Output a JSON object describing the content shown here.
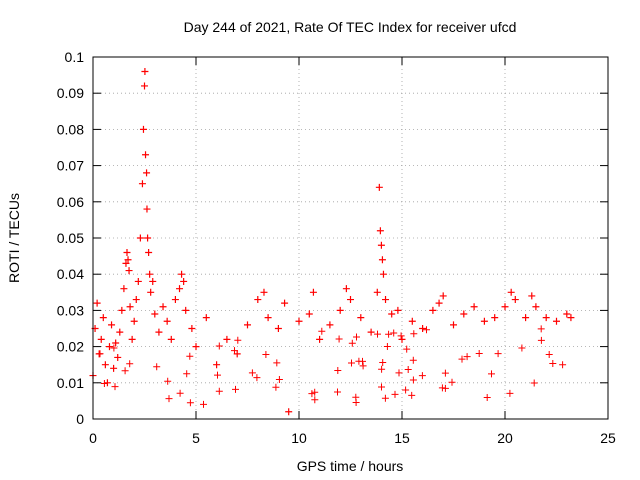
{
  "chart_data": {
    "type": "scatter",
    "title": "Day 244 of 2021, Rate Of TEC Index for receiver ufcd",
    "xlabel": "GPS time / hours",
    "ylabel": "ROTI / TECUs",
    "xlim": [
      0,
      25
    ],
    "ylim": [
      0,
      0.1
    ],
    "xticks": [
      "0",
      "5",
      "10",
      "15",
      "20",
      "25"
    ],
    "yticks": [
      "0",
      "0.01",
      "0.02",
      "0.03",
      "0.04",
      "0.05",
      "0.06",
      "0.07",
      "0.08",
      "0.09",
      "0.1"
    ],
    "grid": true,
    "marker": "+",
    "series": [
      {
        "name": "ROTI",
        "color": "#ff0000",
        "x": [
          0.0,
          0.1,
          0.2,
          0.3,
          0.4,
          0.5,
          0.6,
          0.7,
          0.8,
          0.9,
          1.0,
          1.1,
          1.2,
          1.3,
          1.4,
          1.5,
          1.6,
          1.65,
          1.7,
          1.75,
          1.8,
          1.9,
          2.0,
          2.1,
          2.2,
          2.3,
          2.4,
          2.45,
          2.5,
          2.52,
          2.55,
          2.6,
          2.62,
          2.65,
          2.7,
          2.75,
          2.8,
          2.9,
          3.0,
          3.2,
          3.4,
          3.6,
          3.8,
          4.0,
          4.2,
          4.3,
          4.4,
          4.5,
          4.8,
          5.0,
          5.5,
          6.0,
          6.5,
          7.0,
          7.5,
          8.0,
          8.3,
          8.5,
          9.0,
          9.3,
          9.5,
          10.0,
          10.5,
          10.7,
          11.0,
          11.5,
          12.0,
          12.3,
          12.5,
          13.0,
          13.5,
          13.8,
          13.9,
          13.95,
          14.0,
          14.05,
          14.1,
          14.2,
          14.5,
          14.8,
          15.0,
          15.5,
          16.0,
          16.5,
          16.8,
          17.0,
          17.5,
          18.0,
          18.5,
          19.0,
          19.5,
          20.0,
          20.3,
          20.5,
          21.0,
          21.3,
          21.5,
          22.0,
          22.5,
          23.0,
          23.2
        ],
        "y": [
          0.012,
          0.025,
          0.032,
          0.018,
          0.022,
          0.028,
          0.015,
          0.01,
          0.02,
          0.026,
          0.014,
          0.021,
          0.017,
          0.024,
          0.03,
          0.036,
          0.043,
          0.046,
          0.044,
          0.041,
          0.031,
          0.022,
          0.027,
          0.033,
          0.038,
          0.05,
          0.065,
          0.08,
          0.092,
          0.096,
          0.073,
          0.068,
          0.058,
          0.05,
          0.046,
          0.04,
          0.035,
          0.038,
          0.029,
          0.024,
          0.031,
          0.027,
          0.022,
          0.033,
          0.036,
          0.04,
          0.038,
          0.03,
          0.025,
          0.02,
          0.028,
          0.015,
          0.022,
          0.018,
          0.026,
          0.033,
          0.035,
          0.028,
          0.025,
          0.032,
          0.002,
          0.027,
          0.029,
          0.035,
          0.022,
          0.026,
          0.03,
          0.036,
          0.033,
          0.028,
          0.024,
          0.035,
          0.064,
          0.052,
          0.048,
          0.044,
          0.04,
          0.033,
          0.029,
          0.03,
          0.022,
          0.027,
          0.025,
          0.03,
          0.032,
          0.034,
          0.026,
          0.029,
          0.031,
          0.027,
          0.028,
          0.031,
          0.035,
          0.033,
          0.028,
          0.034,
          0.031,
          0.028,
          0.027,
          0.029,
          0.028
        ]
      }
    ]
  }
}
